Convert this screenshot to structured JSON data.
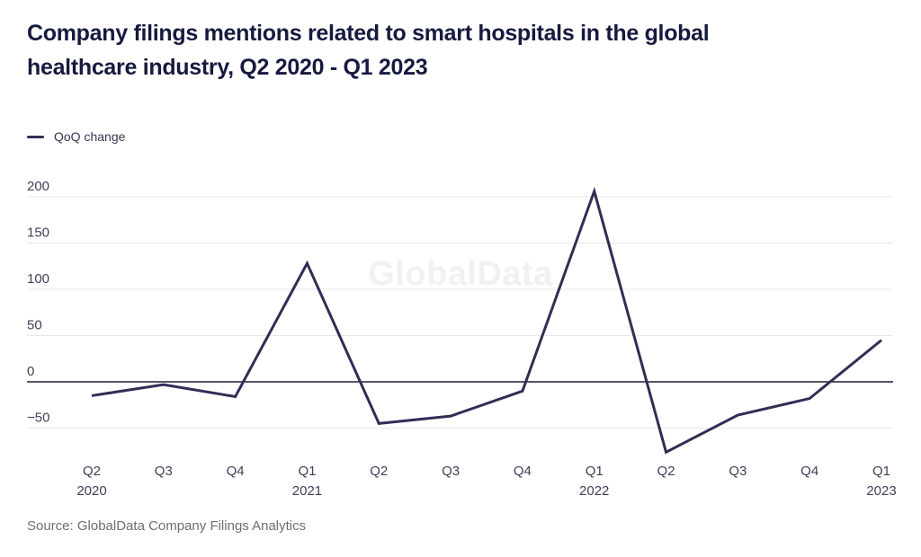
{
  "title": {
    "line1": "Company filings mentions related to smart hospitals in the global",
    "line2": "healthcare industry, Q2 2020 - Q1 2023"
  },
  "watermark": "GlobalData",
  "source": "Source: GlobalData Company Filings Analytics",
  "chart_data": {
    "type": "line",
    "title": "Company filings mentions related to smart hospitals in the global healthcare industry, Q2 2020 - Q1 2023",
    "legend_position": "top-left",
    "grid": true,
    "zero_line": true,
    "ylim": [
      -80,
      220
    ],
    "yticks": [
      200,
      150,
      100,
      50,
      0,
      -50
    ],
    "x_labels": [
      {
        "quarter": "Q2",
        "year": "2020"
      },
      {
        "quarter": "Q3",
        "year": ""
      },
      {
        "quarter": "Q4",
        "year": ""
      },
      {
        "quarter": "Q1",
        "year": "2021"
      },
      {
        "quarter": "Q2",
        "year": ""
      },
      {
        "quarter": "Q3",
        "year": ""
      },
      {
        "quarter": "Q4",
        "year": ""
      },
      {
        "quarter": "Q1",
        "year": "2022"
      },
      {
        "quarter": "Q2",
        "year": ""
      },
      {
        "quarter": "Q3",
        "year": ""
      },
      {
        "quarter": "Q4",
        "year": ""
      },
      {
        "quarter": "Q1",
        "year": "2023"
      }
    ],
    "series": [
      {
        "name": "QoQ change",
        "color": "#322d55",
        "values": [
          -15,
          -3,
          -16,
          128,
          -45,
          -37,
          -10,
          206,
          -76,
          -36,
          -18,
          45
        ]
      }
    ],
    "colors": {
      "gridline": "#e7e7e7",
      "zero_line": "#1b1e33",
      "tick_label": "#3d4157"
    }
  }
}
